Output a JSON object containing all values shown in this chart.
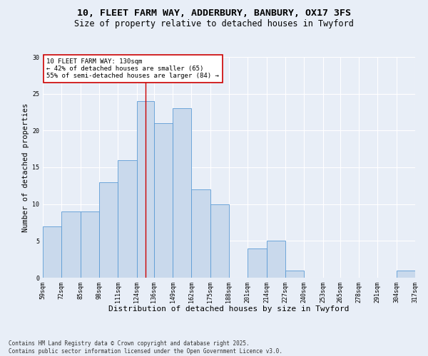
{
  "title_line1": "10, FLEET FARM WAY, ADDERBURY, BANBURY, OX17 3FS",
  "title_line2": "Size of property relative to detached houses in Twyford",
  "xlabel": "Distribution of detached houses by size in Twyford",
  "ylabel": "Number of detached properties",
  "bins": [
    59,
    72,
    85,
    98,
    111,
    124,
    136,
    149,
    162,
    175,
    188,
    201,
    214,
    227,
    240,
    253,
    265,
    278,
    291,
    304,
    317
  ],
  "counts": [
    7,
    9,
    9,
    13,
    16,
    24,
    21,
    23,
    12,
    10,
    0,
    4,
    5,
    1,
    0,
    0,
    0,
    0,
    0,
    1
  ],
  "bar_color": "#c9d9ec",
  "bar_edge_color": "#5b9bd5",
  "background_color": "#e8eef7",
  "grid_color": "#ffffff",
  "vline_x": 130,
  "vline_color": "#cc0000",
  "annotation_text": "10 FLEET FARM WAY: 130sqm\n← 42% of detached houses are smaller (65)\n55% of semi-detached houses are larger (84) →",
  "annotation_box_color": "#ffffff",
  "annotation_box_edge": "#cc0000",
  "ylim": [
    0,
    30
  ],
  "yticks": [
    0,
    5,
    10,
    15,
    20,
    25,
    30
  ],
  "footer_text": "Contains HM Land Registry data © Crown copyright and database right 2025.\nContains public sector information licensed under the Open Government Licence v3.0.",
  "title_fontsize": 9.5,
  "subtitle_fontsize": 8.5,
  "xlabel_fontsize": 8,
  "ylabel_fontsize": 7.5,
  "tick_fontsize": 6,
  "annotation_fontsize": 6.5,
  "footer_fontsize": 5.5
}
